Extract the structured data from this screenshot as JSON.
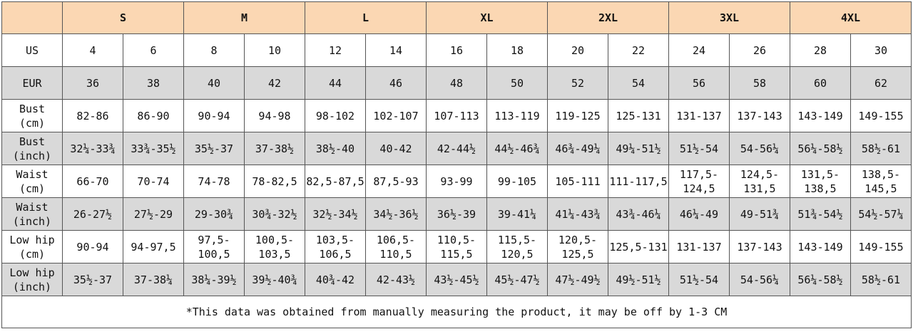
{
  "sizes": [
    "S",
    "M",
    "L",
    "XL",
    "2XL",
    "3XL",
    "4XL"
  ],
  "rows": [
    {
      "label": "US",
      "values": [
        "4",
        "6",
        "8",
        "10",
        "12",
        "14",
        "16",
        "18",
        "20",
        "22",
        "24",
        "26",
        "28",
        "30"
      ]
    },
    {
      "label": "EUR",
      "values": [
        "36",
        "38",
        "40",
        "42",
        "44",
        "46",
        "48",
        "50",
        "52",
        "54",
        "56",
        "58",
        "60",
        "62"
      ]
    },
    {
      "label": "Bust\n(cm)",
      "values": [
        "82-86",
        "86-90",
        "90-94",
        "94-98",
        "98-102",
        "102-107",
        "107-113",
        "113-119",
        "119-125",
        "125-131",
        "131-137",
        "137-143",
        "143-149",
        "149-155"
      ]
    },
    {
      "label": "Bust\n(inch)",
      "values": [
        "32¼-33¾",
        "33¾-35½",
        "35½-37",
        "37-38½",
        "38½-40",
        "40-42",
        "42-44½",
        "44½-46¾",
        "46¾-49¼",
        "49¼-51½",
        "51½-54",
        "54-56¼",
        "56¼-58½",
        "58½-61"
      ]
    },
    {
      "label": "Waist\n(cm)",
      "values": [
        "66-70",
        "70-74",
        "74-78",
        "78-82,5",
        "82,5-87,5",
        "87,5-93",
        "93-99",
        "99-105",
        "105-111",
        "111-117,5",
        "117,5-\n124,5",
        "124,5-\n131,5",
        "131,5-\n138,5",
        "138,5-\n145,5"
      ]
    },
    {
      "label": "Waist\n(inch)",
      "values": [
        "26-27½",
        "27½-29",
        "29-30¾",
        "30¾-32½",
        "32½-34½",
        "34½-36½",
        "36½-39",
        "39-41¼",
        "41¼-43¾",
        "43¾-46¼",
        "46¼-49",
        "49-51¾",
        "51¾-54½",
        "54½-57¼"
      ]
    },
    {
      "label": "Low hip\n(cm)",
      "values": [
        "90-94",
        "94-97,5",
        "97,5-\n100,5",
        "100,5-\n103,5",
        "103,5-\n106,5",
        "106,5-\n110,5",
        "110,5-\n115,5",
        "115,5-\n120,5",
        "120,5-\n125,5",
        "125,5-131",
        "131-137",
        "137-143",
        "143-149",
        "149-155"
      ]
    },
    {
      "label": "Low hip\n(inch)",
      "values": [
        "35½-37",
        "37-38¼",
        "38¼-39½",
        "39½-40¾",
        "40¾-42",
        "42-43½",
        "43½-45½",
        "45½-47½",
        "47½-49½",
        "49½-51½",
        "51½-54",
        "54-56¼",
        "56¼-58½",
        "58½-61"
      ]
    }
  ],
  "note": "*This data was obtained from manually measuring the product, it may be off by 1-3 CM",
  "colors": {
    "header_bg": "#fbd7b3",
    "grey_row_bg": "#d9d9d9",
    "white_row_bg": "#ffffff",
    "border": "#555555"
  }
}
